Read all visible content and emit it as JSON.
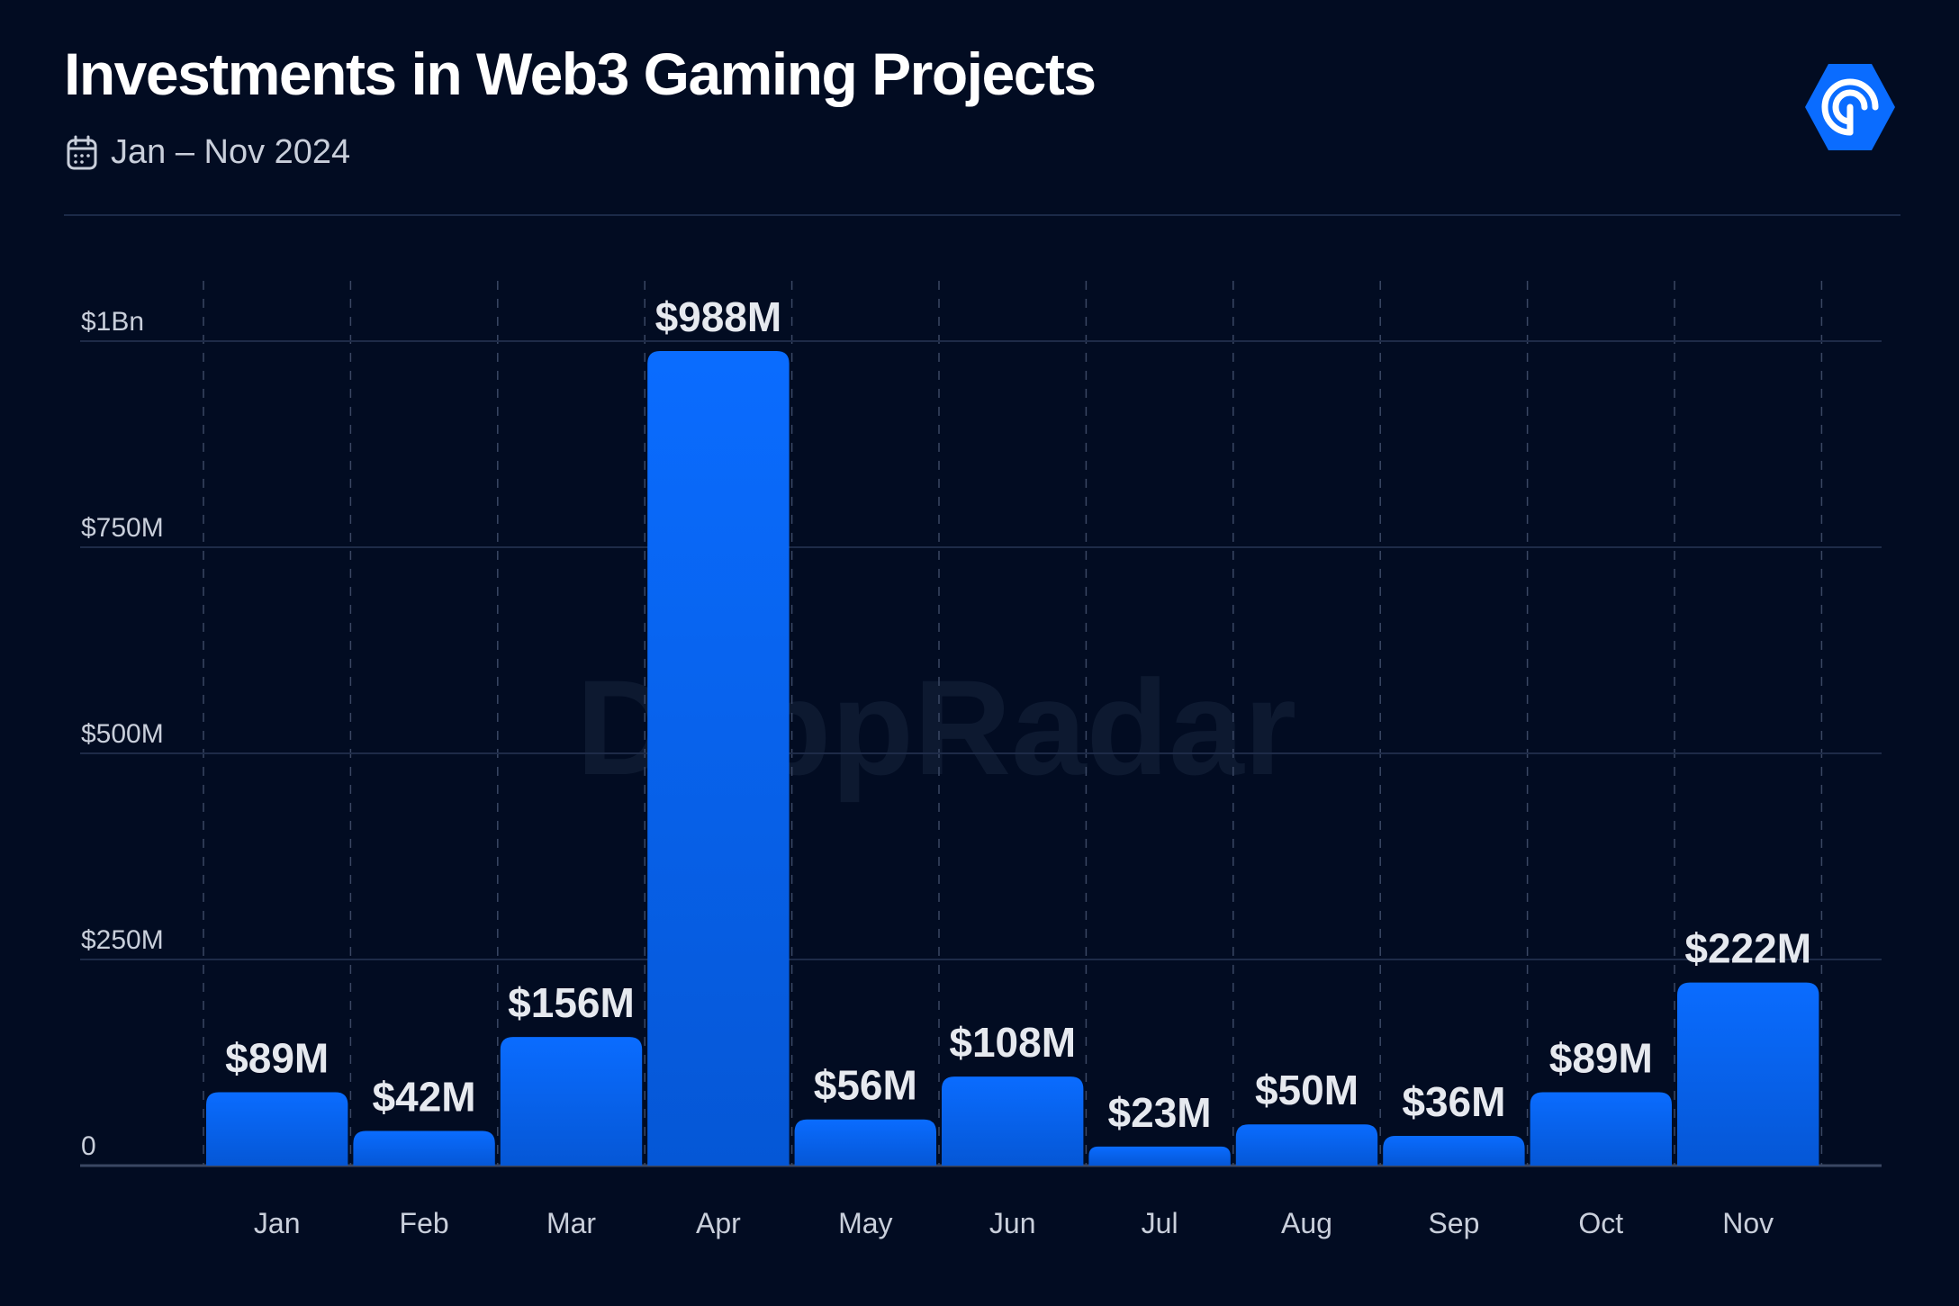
{
  "header": {
    "title": "Investments in Web3 Gaming Projects",
    "date_range": "Jan – Nov 2024",
    "calendar_icon": "calendar-icon",
    "logo_icon": "dappradar-logo-icon",
    "watermark": "DappRadar"
  },
  "colors": {
    "background": "#020c22",
    "bar_top": "#0a6cff",
    "bar_bottom": "#0557d6",
    "grid": "#1e2b48",
    "text": "#e6e9ef",
    "axis_text": "#c9cfdb"
  },
  "chart_data": {
    "type": "bar",
    "title": "Investments in Web3 Gaming Projects",
    "subtitle": "Jan – Nov 2024",
    "categories": [
      "Jan",
      "Feb",
      "Mar",
      "Apr",
      "May",
      "Jun",
      "Jul",
      "Aug",
      "Sep",
      "Oct",
      "Nov"
    ],
    "values": [
      89,
      42,
      156,
      988,
      56,
      108,
      23,
      50,
      36,
      89,
      222
    ],
    "data_labels": [
      "$89M",
      "$42M",
      "$156M",
      "$988M",
      "$56M",
      "$108M",
      "$23M",
      "$50M",
      "$36M",
      "$89M",
      "$222M"
    ],
    "unit": "$M",
    "ylim": [
      0,
      1000
    ],
    "yticks": [
      0,
      250,
      500,
      750,
      1000
    ],
    "ytick_labels": [
      "0",
      "$250M",
      "$500M",
      "$750M",
      "$1Bn"
    ],
    "grid": true,
    "legend": "none"
  }
}
